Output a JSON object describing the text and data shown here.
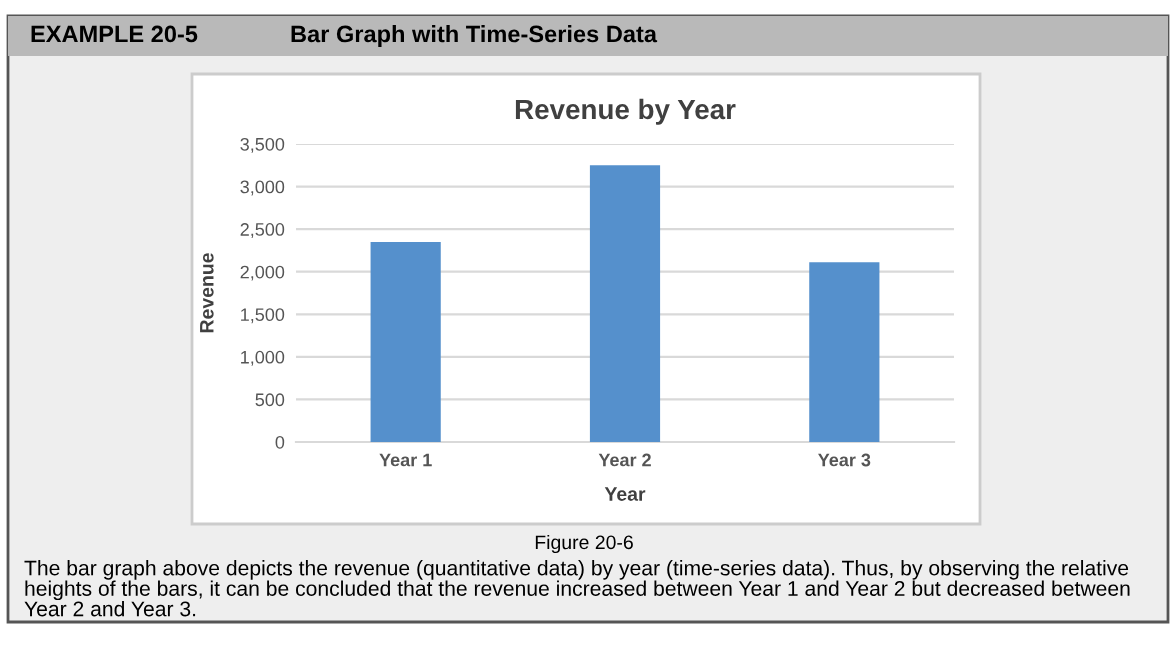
{
  "chart_data": {
    "type": "bar",
    "title": "Revenue by Year",
    "xlabel": "Year",
    "ylabel": "Revenue",
    "categories": [
      "Year 1",
      "Year 2",
      "Year 3"
    ],
    "values": [
      2350,
      3250,
      2110
    ],
    "color": "#5590cc",
    "ylim": [
      0,
      3500
    ],
    "yticks": [
      {
        "value": 0,
        "label": "0"
      },
      {
        "value": 500,
        "label": "500"
      },
      {
        "value": 1000,
        "label": "1,000"
      },
      {
        "value": 1500,
        "label": "1,500"
      },
      {
        "value": 2000,
        "label": "2,000"
      },
      {
        "value": 2500,
        "label": "2,500"
      },
      {
        "value": 3000,
        "label": "3,000"
      },
      {
        "value": 3500,
        "label": "3,500"
      }
    ],
    "grid": "y",
    "annotations": [
      "EXAMPLE 20-5",
      "Bar Graph with Time-Series Data",
      "Figure 20-6",
      "The bar graph above depicts the revenue (quantitative data) by year (time-series data). Thus, by observing the relative heights of the bars, it can be concluded that the revenue increased between Year 1 and Year 2 but decreased between Year 2 and Year 3."
    ]
  }
}
